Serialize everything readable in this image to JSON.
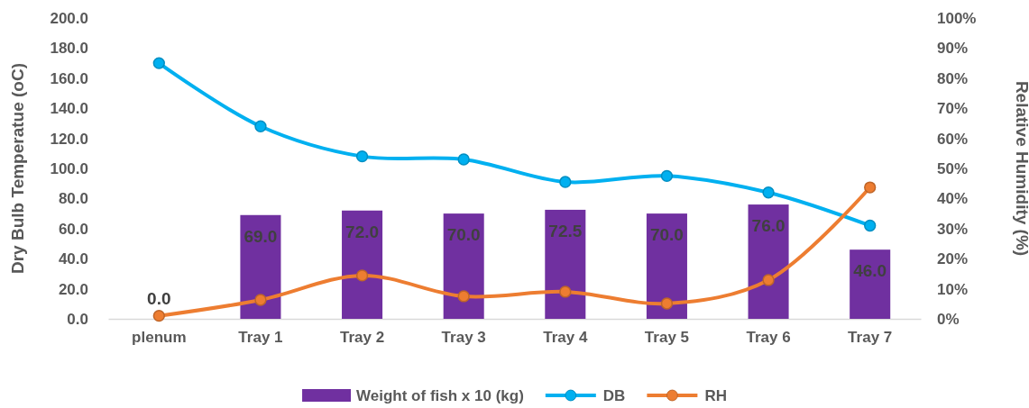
{
  "chart_data": {
    "type": "bar",
    "categories": [
      "plenum",
      "Tray 1",
      "Tray 2",
      "Tray 3",
      "Tray 4",
      "Tray 5",
      "Tray 6",
      "Tray 7"
    ],
    "ylabel": "Dry Bulb Temperatue (oC)",
    "y2label": "Relative Humidity (%)",
    "series": [
      {
        "name": "Weight of fish x 10 (kg)",
        "color": "#7030a0",
        "values": [
          0,
          69,
          72,
          70,
          72.5,
          70,
          76,
          46
        ],
        "value_labels": [
          "0.0",
          "69.0",
          "72.0",
          "70.0",
          "72.5",
          "70.0",
          "76.0",
          "46.0"
        ]
      },
      {
        "name": "DB",
        "type": "line",
        "color": "#00b0f0",
        "values": [
          170,
          128,
          108,
          106,
          91,
          95,
          84,
          62
        ]
      },
      {
        "name": "RH",
        "type": "line",
        "axis": "y2",
        "color": "#ed7d31",
        "values": [
          1,
          6.3,
          14.4,
          7.5,
          9,
          5.1,
          12.9,
          43.7
        ]
      }
    ],
    "ylim": [
      0,
      200
    ],
    "yticks": [
      {
        "value": 0,
        "label": "0.0"
      },
      {
        "value": 20,
        "label": "20.0"
      },
      {
        "value": 40,
        "label": "40.0"
      },
      {
        "value": 60,
        "label": "60.0"
      },
      {
        "value": 80,
        "label": "80.0"
      },
      {
        "value": 100,
        "label": "100.0"
      },
      {
        "value": 120,
        "label": "120.0"
      },
      {
        "value": 140,
        "label": "140.0"
      },
      {
        "value": 160,
        "label": "160.0"
      },
      {
        "value": 180,
        "label": "180.0"
      },
      {
        "value": 200,
        "label": "200.0"
      }
    ],
    "y2lim": [
      0,
      100
    ],
    "y2ticks": [
      {
        "value": 0,
        "label": "0%"
      },
      {
        "value": 10,
        "label": "10%"
      },
      {
        "value": 20,
        "label": "20%"
      },
      {
        "value": 30,
        "label": "30%"
      },
      {
        "value": 40,
        "label": "40%"
      },
      {
        "value": 50,
        "label": "50%"
      },
      {
        "value": 60,
        "label": "60%"
      },
      {
        "value": 70,
        "label": "70%"
      },
      {
        "value": 80,
        "label": "80%"
      },
      {
        "value": 90,
        "label": "90%"
      },
      {
        "value": 100,
        "label": "100%"
      }
    ],
    "marker": "circle",
    "line_style": "solid",
    "grid": false,
    "legend": "bottom"
  }
}
